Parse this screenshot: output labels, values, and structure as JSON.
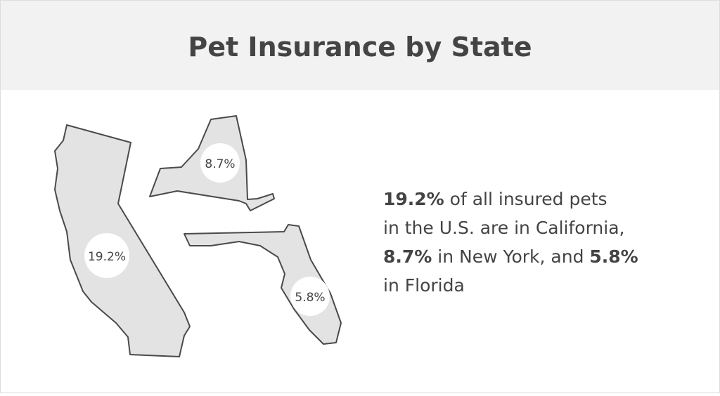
{
  "header": {
    "title": "Pet Insurance by State"
  },
  "map_labels": [
    "19.2%",
    "8.7%",
    "5.8%"
  ],
  "summary": {
    "lines": [
      [
        {
          "text": "19.2%",
          "bold": true
        },
        {
          "text": " of all insured pets",
          "bold": false
        }
      ],
      [
        {
          "text": "in the U.S. are in California,",
          "bold": false
        }
      ],
      [
        {
          "text": "8.7%",
          "bold": true
        },
        {
          "text": " in New York, and ",
          "bold": false
        },
        {
          "text": "5.8%",
          "bold": true
        }
      ],
      [
        {
          "text": "in Florida",
          "bold": false
        }
      ]
    ]
  }
}
